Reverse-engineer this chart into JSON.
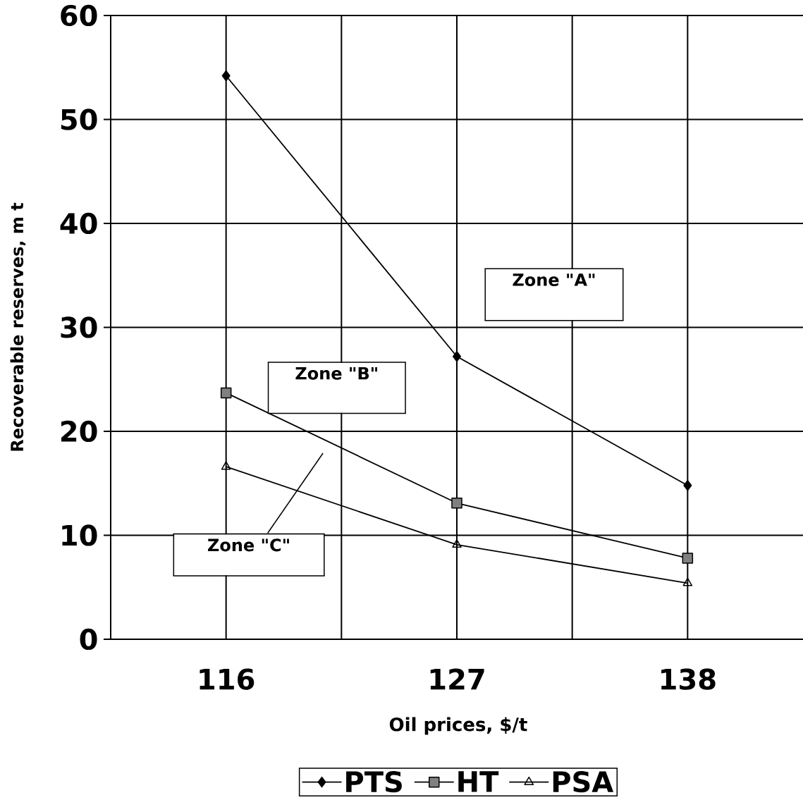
{
  "chart_data": {
    "type": "line",
    "xlabel": "Oil prices, $/t",
    "ylabel": "Recoverable reserves, m t",
    "categories": [
      "116",
      "127",
      "138"
    ],
    "series": [
      {
        "name": "PTS",
        "color": "#000000",
        "marker": "diamond",
        "values": [
          54.2,
          27.2,
          14.8
        ]
      },
      {
        "name": "HT",
        "color": "#000000",
        "marker": "square",
        "values": [
          23.7,
          13.1,
          7.8
        ]
      },
      {
        "name": "PSA",
        "color": "#000000",
        "marker": "triangle",
        "values": [
          16.6,
          9.1,
          5.4
        ]
      }
    ],
    "ylim": [
      0,
      60
    ],
    "yticks": [
      0,
      10,
      20,
      30,
      40,
      50,
      60
    ],
    "grid": true,
    "legend": "bottom",
    "annotations": [
      "Zone \"A\"",
      "Zone \"B\"",
      "Zone \"C\""
    ]
  }
}
